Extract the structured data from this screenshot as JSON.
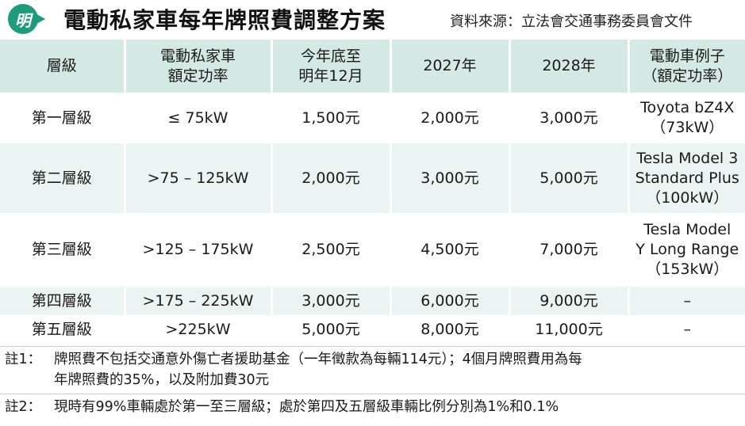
{
  "header": {
    "logo_char": "明",
    "title": "電動私家車每年牌照費調整方案",
    "source": "資料來源：立法會交通事務委員會文件"
  },
  "table": {
    "headers": [
      [
        "層級"
      ],
      [
        "電動私家車",
        "額定功率"
      ],
      [
        "今年底至",
        "明年12月"
      ],
      [
        "2027年"
      ],
      [
        "2028年"
      ],
      [
        "電動車例子",
        "（額定功率）"
      ]
    ],
    "rows": [
      {
        "tier": "第一層級",
        "power": "≤ 75kW",
        "now": "1,500元",
        "y2027": "2,000元",
        "y2028": "3,000元",
        "example": [
          "Toyota bZ4X",
          "（73kW）"
        ]
      },
      {
        "tier": "第二層級",
        "power": ">75 – 125kW",
        "now": "2,000元",
        "y2027": "3,000元",
        "y2028": "5,000元",
        "example": [
          "Tesla Model 3",
          "Standard Plus",
          "（100kW）"
        ]
      },
      {
        "tier": "第三層級",
        "power": ">125 – 175kW",
        "now": "2,500元",
        "y2027": "4,500元",
        "y2028": "7,000元",
        "example": [
          "Tesla Model",
          "Y Long Range",
          "（153kW）"
        ]
      },
      {
        "tier": "第四層級",
        "power": ">175 – 225kW",
        "now": "3,000元",
        "y2027": "6,000元",
        "y2028": "9,000元",
        "example": [
          "–"
        ]
      },
      {
        "tier": "第五層級",
        "power": ">225kW",
        "now": "5,000元",
        "y2027": "8,000元",
        "y2028": "11,000元",
        "example": [
          "–"
        ]
      }
    ]
  },
  "notes": [
    {
      "label": "註1：",
      "lines": [
        "牌照費不包括交通意外傷亡者援助基金（一年徵款為每輛114元）；4個月牌照費用為每",
        "年牌照費的35%，以及附加費30元"
      ]
    },
    {
      "label": "註2：",
      "lines": [
        "現時有99%車輛處於第一至三層級；處於第四及五層級車輛比例分別為1%和0.1%"
      ]
    }
  ],
  "colors": {
    "accent": "#1e9a7c",
    "header_bg": "#d4e8e4",
    "row_tint": "#eaf4f2"
  }
}
